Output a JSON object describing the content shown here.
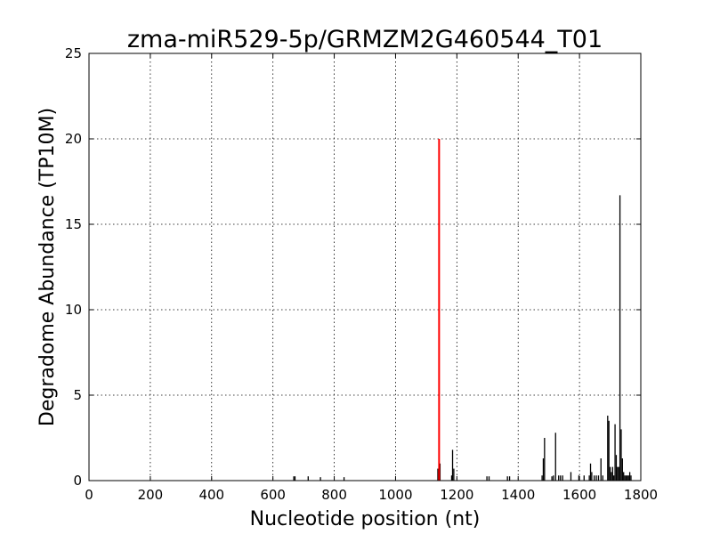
{
  "chart_data": {
    "type": "bar",
    "title": "zma-miR529-5p/GRMZM2G460544_T01",
    "xlabel": "Nucleotide position (nt)",
    "ylabel": "Degradome Abundance (TP10M)",
    "xlim": [
      0,
      1800
    ],
    "ylim": [
      0,
      25
    ],
    "xticks": [
      "0",
      "200",
      "400",
      "600",
      "800",
      "1000",
      "1200",
      "1400",
      "1600",
      "1800"
    ],
    "yticks": [
      "0",
      "5",
      "10",
      "15",
      "20",
      "25"
    ],
    "grid": true,
    "highlight": {
      "x": 1142,
      "y": 20.0,
      "color": "#ff0000"
    },
    "series": [
      {
        "color": "#000000",
        "x": [
          668,
          672,
          715,
          755,
          832,
          1138,
          1145,
          1183,
          1186,
          1190,
          1298,
          1305,
          1365,
          1372,
          1478,
          1482,
          1486,
          1510,
          1515,
          1522,
          1532,
          1538,
          1545,
          1572,
          1598,
          1615,
          1632,
          1636,
          1640,
          1648,
          1655,
          1662,
          1670,
          1676,
          1692,
          1696,
          1700,
          1704,
          1708,
          1712,
          1716,
          1720,
          1724,
          1728,
          1732,
          1736,
          1740,
          1744,
          1748,
          1752,
          1756,
          1760,
          1764,
          1768
        ],
        "values": [
          0.25,
          0.25,
          0.25,
          0.2,
          0.2,
          0.7,
          1.0,
          0.3,
          1.8,
          0.7,
          0.25,
          0.25,
          0.25,
          0.25,
          0.3,
          1.3,
          2.5,
          0.25,
          0.3,
          2.8,
          0.3,
          0.3,
          0.3,
          0.5,
          0.3,
          0.3,
          0.3,
          1.0,
          0.5,
          0.3,
          0.3,
          0.3,
          1.3,
          0.3,
          3.8,
          3.5,
          0.8,
          0.5,
          0.8,
          0.3,
          3.3,
          1.5,
          0.8,
          0.8,
          16.7,
          3.0,
          1.3,
          0.5,
          0.3,
          0.3,
          0.3,
          0.3,
          0.5,
          0.3
        ]
      }
    ]
  }
}
